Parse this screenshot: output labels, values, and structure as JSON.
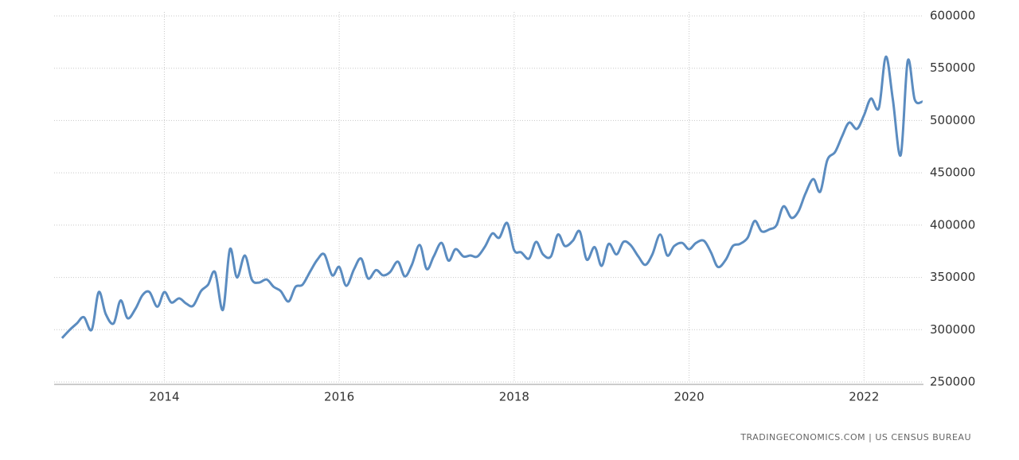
{
  "chart_data": {
    "type": "line",
    "source": "TRADINGECONOMICS.COM | US CENSUS BUREAU",
    "x": [
      2012.83,
      2012.92,
      2013.0,
      2013.08,
      2013.17,
      2013.25,
      2013.33,
      2013.42,
      2013.5,
      2013.58,
      2013.67,
      2013.75,
      2013.83,
      2013.92,
      2014.0,
      2014.08,
      2014.17,
      2014.25,
      2014.33,
      2014.42,
      2014.5,
      2014.58,
      2014.67,
      2014.75,
      2014.83,
      2014.92,
      2015.0,
      2015.08,
      2015.17,
      2015.25,
      2015.33,
      2015.42,
      2015.5,
      2015.58,
      2015.67,
      2015.75,
      2015.83,
      2015.92,
      2016.0,
      2016.08,
      2016.17,
      2016.25,
      2016.33,
      2016.42,
      2016.5,
      2016.58,
      2016.67,
      2016.75,
      2016.83,
      2016.92,
      2017.0,
      2017.08,
      2017.17,
      2017.25,
      2017.33,
      2017.42,
      2017.5,
      2017.58,
      2017.67,
      2017.75,
      2017.83,
      2017.92,
      2018.0,
      2018.08,
      2018.17,
      2018.25,
      2018.33,
      2018.42,
      2018.5,
      2018.58,
      2018.67,
      2018.75,
      2018.83,
      2018.92,
      2019.0,
      2019.08,
      2019.17,
      2019.25,
      2019.33,
      2019.42,
      2019.5,
      2019.58,
      2019.67,
      2019.75,
      2019.83,
      2019.92,
      2020.0,
      2020.08,
      2020.17,
      2020.25,
      2020.33,
      2020.42,
      2020.5,
      2020.58,
      2020.67,
      2020.75,
      2020.83,
      2020.92,
      2021.0,
      2021.08,
      2021.17,
      2021.25,
      2021.33,
      2021.42,
      2021.5,
      2021.58,
      2021.67,
      2021.75,
      2021.83,
      2021.92,
      2022.0,
      2022.08,
      2022.17,
      2022.25,
      2022.33,
      2022.42,
      2022.5,
      2022.58,
      2022.67
    ],
    "series": [
      {
        "color": "#5b8cc0",
        "values": [
          292000,
          300000,
          306000,
          312000,
          300000,
          336000,
          315000,
          306000,
          328000,
          311000,
          320000,
          333000,
          336000,
          322000,
          336000,
          326000,
          330000,
          325000,
          323000,
          337000,
          343000,
          355000,
          319000,
          377000,
          350000,
          371000,
          348000,
          345000,
          348000,
          341000,
          337000,
          327000,
          341000,
          343000,
          356000,
          367000,
          372000,
          352000,
          360000,
          342000,
          358000,
          368000,
          349000,
          357000,
          352000,
          355000,
          365000,
          351000,
          362000,
          381000,
          358000,
          370000,
          383000,
          366000,
          377000,
          370000,
          371000,
          370000,
          380000,
          392000,
          388000,
          402000,
          376000,
          374000,
          368000,
          384000,
          372000,
          370000,
          391000,
          380000,
          385000,
          394000,
          367000,
          379000,
          361000,
          382000,
          372000,
          384000,
          381000,
          370000,
          362000,
          372000,
          391000,
          371000,
          380000,
          383000,
          377000,
          383000,
          385000,
          374000,
          360000,
          367000,
          380000,
          382000,
          388000,
          404000,
          394000,
          396000,
          400000,
          418000,
          407000,
          413000,
          430000,
          444000,
          432000,
          462000,
          470000,
          485000,
          498000,
          492000,
          505000,
          521000,
          512000,
          561000,
          520000,
          467000,
          557000,
          520000,
          518000
        ]
      }
    ],
    "xlim": [
      2012.74,
      2022.68
    ],
    "xticks": [
      2014,
      2016,
      2018,
      2020,
      2022
    ],
    "ylim": [
      250000,
      600000
    ],
    "yticks": [
      250000,
      300000,
      350000,
      400000,
      450000,
      500000,
      550000,
      600000
    ],
    "grid": true
  }
}
